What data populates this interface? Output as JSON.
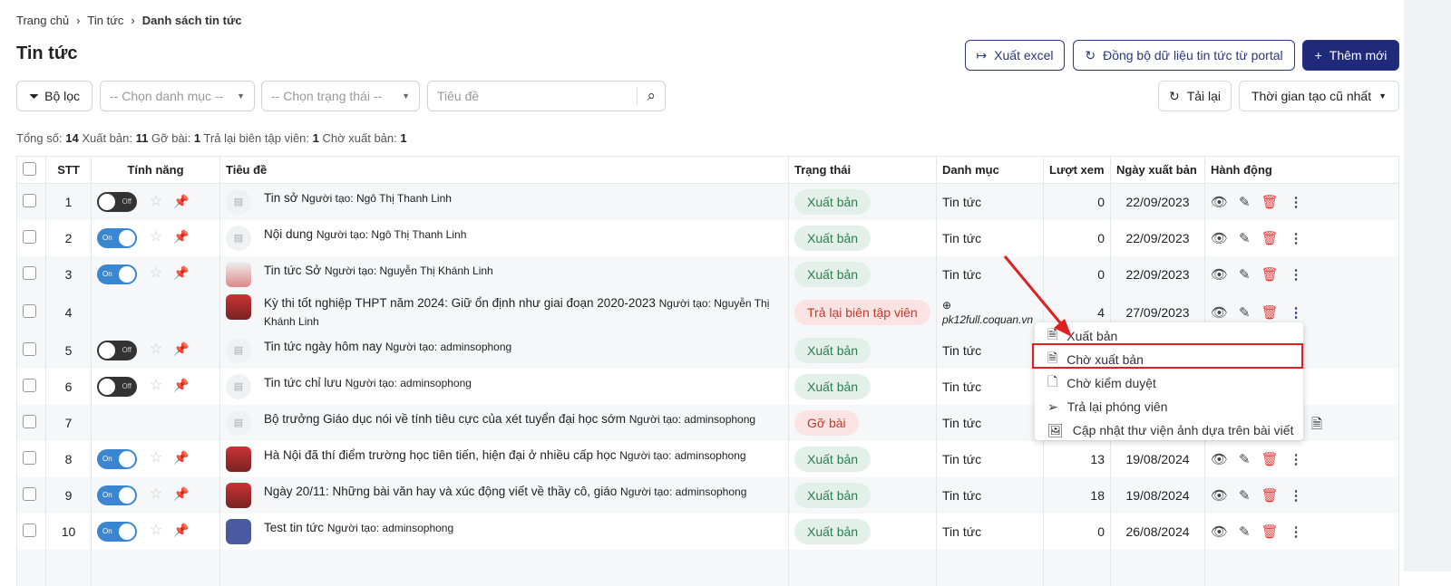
{
  "breadcrumb": [
    "Trang chủ",
    "Tin tức",
    "Danh sách tin tức"
  ],
  "page_title": "Tin tức",
  "toolbar": {
    "export": "Xuất excel",
    "sync": "Đồng bộ dữ liệu tin tức từ portal",
    "add": "Thêm mới",
    "reload": "Tải lại",
    "sort": "Thời gian tạo cũ nhất"
  },
  "filters": {
    "filter": "Bộ lọc",
    "category_placeholder": "-- Chọn danh mục --",
    "status_placeholder": "-- Chọn trạng thái --",
    "title_placeholder": "Tiêu đề"
  },
  "stats": {
    "total_label": "Tổng số:",
    "total": "14",
    "published_label": "Xuất bản:",
    "published": "11",
    "removed_label": "Gỡ bài:",
    "removed": "1",
    "returned_label": "Trả lại biên tập viên:",
    "returned": "1",
    "pending_label": "Chờ xuất bản:",
    "pending": "1"
  },
  "columns": [
    "STT",
    "Tính năng",
    "Tiêu đề",
    "Trạng thái",
    "Danh mục",
    "Lượt xem",
    "Ngày xuất bản",
    "Hành động"
  ],
  "rows": [
    {
      "stt": "1",
      "toggle": "Off",
      "title": "Tin sở",
      "author": "Người tạo: Ngô Thị Thanh Linh",
      "status": "Xuất bản",
      "category": "Tin tức",
      "views": "0",
      "date": "22/09/2023"
    },
    {
      "stt": "2",
      "toggle": "On",
      "title": "Nội dung",
      "author": "Người tạo: Ngô Thị Thanh Linh",
      "status": "Xuất bản",
      "category": "Tin tức",
      "views": "0",
      "date": "22/09/2023"
    },
    {
      "stt": "3",
      "toggle": "On",
      "title": "Tin tức Sở",
      "author": "Người tạo: Nguyễn Thị Khánh Linh",
      "status": "Xuất bản",
      "category": "Tin tức",
      "views": "0",
      "date": "22/09/2023"
    },
    {
      "stt": "4",
      "toggle": "",
      "title": "Kỳ thi tốt nghiệp THPT năm 2024: Giữ ổn định như giai đoạn 2020-2023",
      "author": "Người tạo: Nguyễn Thị Khánh Linh",
      "status": "Trả lại biên tập viên",
      "category": "pk12full.coquan.vn",
      "views": "4",
      "date": "27/09/2023"
    },
    {
      "stt": "5",
      "toggle": "Off",
      "title": "Tin tức ngày hôm nay",
      "author": "Người tạo: adminsophong",
      "status": "Xuất bản",
      "category": "Tin tức",
      "views": "",
      "date": ""
    },
    {
      "stt": "6",
      "toggle": "Off",
      "title": "Tin tức chỉ lưu",
      "author": "Người tạo: adminsophong",
      "status": "Xuất bản",
      "category": "Tin tức",
      "views": "",
      "date": ""
    },
    {
      "stt": "7",
      "toggle": "",
      "title": "Bộ trưởng Giáo dục nói về tính tiêu cực của xét tuyển đại học sớm",
      "author": "Người tạo: adminsophong",
      "status": "Gỡ bài",
      "category": "Tin tức",
      "views": "",
      "date": ""
    },
    {
      "stt": "8",
      "toggle": "On",
      "title": "Hà Nội đã thí điểm trường học tiên tiến, hiện đại ở nhiều cấp học",
      "author": "Người tạo: adminsophong",
      "status": "Xuất bản",
      "category": "Tin tức",
      "views": "13",
      "date": "19/08/2024"
    },
    {
      "stt": "9",
      "toggle": "On",
      "title": "Ngày 20/11: Những bài văn hay và xúc động viết về thầy cô, giáo",
      "author": "Người tạo: adminsophong",
      "status": "Xuất bản",
      "category": "Tin tức",
      "views": "18",
      "date": "19/08/2024"
    },
    {
      "stt": "10",
      "toggle": "On",
      "title": "Test tin tức",
      "author": "Người tạo: adminsophong",
      "status": "Xuất bản",
      "category": "Tin tức",
      "views": "0",
      "date": "26/08/2024"
    }
  ],
  "context_menu": [
    "Xuất bản",
    "Chờ xuất bản",
    "Chờ kiểm duyệt",
    "Trả lại phóng viên",
    "Cập nhật thư viện ảnh dựa trên bài viết"
  ],
  "colors": {
    "primary": "#1f2a7a",
    "highlight": "#e02020",
    "published": "#2e7d4f",
    "returned": "#c0392b"
  }
}
